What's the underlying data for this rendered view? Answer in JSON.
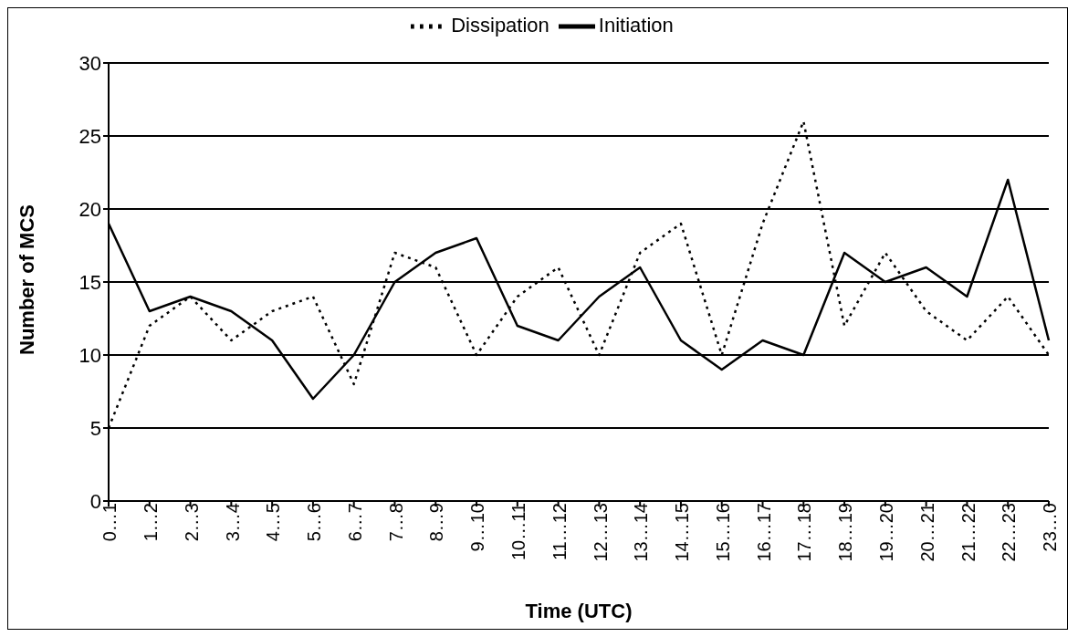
{
  "chart_data": {
    "type": "line",
    "xlabel": "Time (UTC)",
    "ylabel": "Number of MCS",
    "categories": [
      "0…1",
      "1…2",
      "2…3",
      "3…4",
      "4…5",
      "5…6",
      "6…7",
      "7…8",
      "8…9",
      "9…10",
      "10…11",
      "11…12",
      "12…13",
      "13…14",
      "14…15",
      "15…16",
      "16…17",
      "17…18",
      "18…19",
      "19…20",
      "20…21",
      "21…22",
      "22…23",
      "23…0"
    ],
    "series": [
      {
        "name": "Initiation",
        "color": "#000000",
        "line_style": "solid",
        "values": [
          19,
          13,
          14,
          13,
          11,
          7,
          10,
          15,
          17,
          18,
          12,
          11,
          14,
          16,
          11,
          9,
          11,
          10,
          17,
          15,
          16,
          14,
          22,
          11
        ]
      },
      {
        "name": "Dissipation",
        "color": "#000000",
        "line_style": "dotted",
        "values": [
          5,
          12,
          14,
          11,
          13,
          14,
          8,
          17,
          16,
          10,
          14,
          16,
          10,
          17,
          19,
          10,
          19,
          26,
          12,
          17,
          13,
          11,
          14,
          10
        ]
      }
    ],
    "ylim": [
      0,
      30
    ],
    "yticks": [
      0,
      5,
      10,
      15,
      20,
      25,
      30
    ],
    "grid": "y",
    "legend": "top",
    "marker": "none"
  }
}
